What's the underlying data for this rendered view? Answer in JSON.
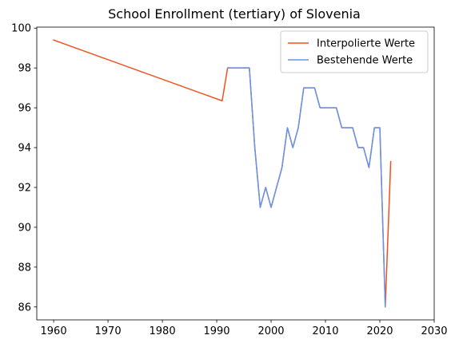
{
  "chart_data": {
    "type": "line",
    "title": "School Enrollment (tertiary) of Slovenia",
    "xlabel": "",
    "ylabel": "",
    "xlim": [
      1956.9,
      2030
    ],
    "ylim": [
      85.35,
      100.05
    ],
    "xticks": [
      1960,
      1970,
      1980,
      1990,
      2000,
      2010,
      2020,
      2030
    ],
    "yticks": [
      86,
      88,
      90,
      92,
      94,
      96,
      98,
      100
    ],
    "grid": false,
    "legend_position": "top-right",
    "series": [
      {
        "name": "Interpolierte Werte",
        "color": "#f0501e",
        "x": [
          1960,
          1991,
          1992,
          1993,
          1994,
          1995,
          1996,
          1997,
          1998,
          1999,
          2000,
          2001,
          2002,
          2003,
          2004,
          2005,
          2006,
          2007,
          2008,
          2009,
          2010,
          2011,
          2012,
          2013,
          2014,
          2015,
          2016,
          2017,
          2018,
          2019,
          2020,
          2021,
          2022
        ],
        "values": [
          99.4,
          96.35,
          98,
          98,
          98,
          98,
          98,
          94,
          91,
          92,
          91,
          92,
          93,
          95,
          94,
          95,
          97,
          97,
          97,
          96,
          96,
          96,
          96,
          95,
          95,
          95,
          94,
          94,
          93,
          95,
          95,
          86,
          93.3
        ]
      },
      {
        "name": "Bestehende Werte",
        "color": "#6495ed",
        "x": [
          1992,
          1993,
          1994,
          1995,
          1996,
          1997,
          1998,
          1999,
          2000,
          2001,
          2002,
          2003,
          2004,
          2005,
          2006,
          2007,
          2008,
          2009,
          2010,
          2011,
          2012,
          2013,
          2014,
          2015,
          2016,
          2017,
          2018,
          2019,
          2020,
          2021
        ],
        "values": [
          98,
          98,
          98,
          98,
          98,
          94,
          91,
          92,
          91,
          92,
          93,
          95,
          94,
          95,
          97,
          97,
          97,
          96,
          96,
          96,
          96,
          95,
          95,
          95,
          94,
          94,
          93,
          95,
          95,
          86
        ]
      }
    ]
  }
}
